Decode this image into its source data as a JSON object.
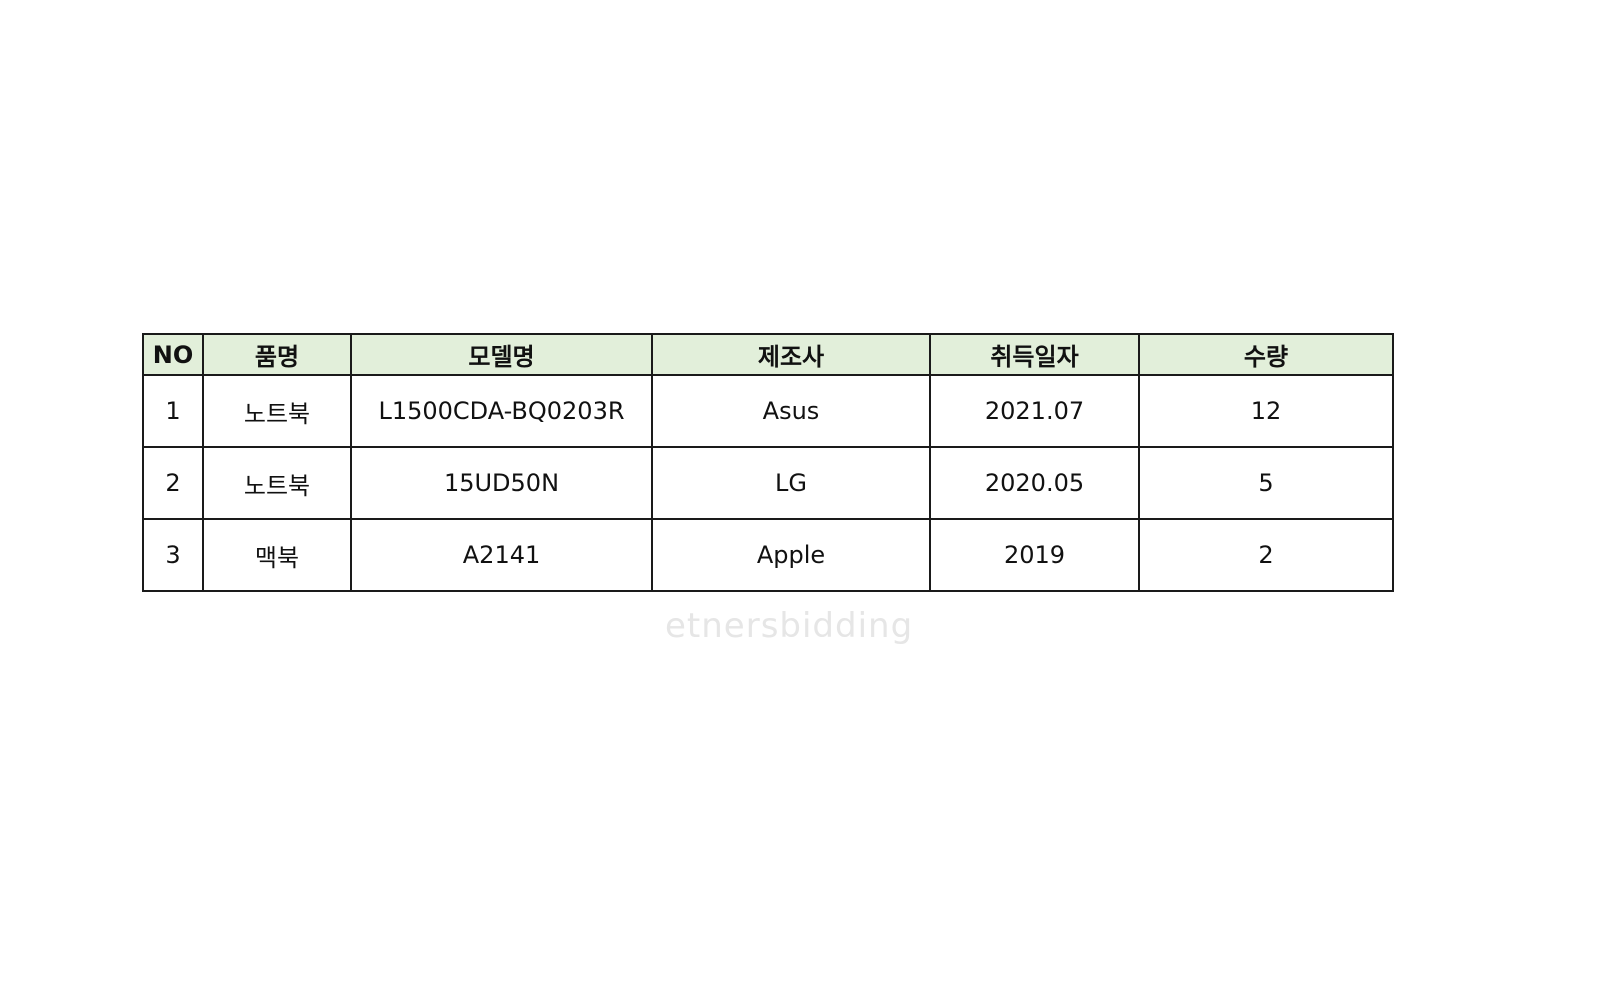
{
  "table": {
    "headers": [
      "NO",
      "품명",
      "모델명",
      "제조사",
      "취득일자",
      "수량"
    ],
    "rows": [
      [
        "1",
        "노트북",
        "L1500CDA-BQ0203R",
        "Asus",
        "2021.07",
        "12"
      ],
      [
        "2",
        "노트북",
        "15UD50N",
        "LG",
        "2020.05",
        "5"
      ],
      [
        "3",
        "맥북",
        "A2141",
        "Apple",
        "2019",
        "2"
      ]
    ],
    "header_bg": "#e2efda"
  },
  "watermark": "etnersbidding"
}
